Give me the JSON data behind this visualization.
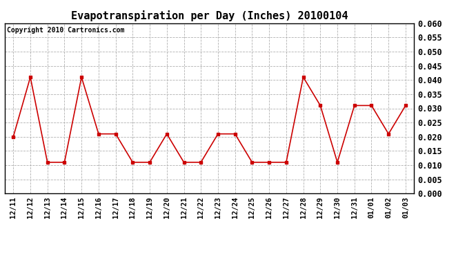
{
  "title": "Evapotranspiration per Day (Inches) 20100104",
  "copyright_text": "Copyright 2010 Cartronics.com",
  "x_labels": [
    "12/11",
    "12/12",
    "12/13",
    "12/14",
    "12/15",
    "12/16",
    "12/17",
    "12/18",
    "12/19",
    "12/20",
    "12/21",
    "12/22",
    "12/23",
    "12/24",
    "12/25",
    "12/26",
    "12/27",
    "12/28",
    "12/29",
    "12/30",
    "12/31",
    "01/01",
    "01/02",
    "01/03"
  ],
  "y_values": [
    0.02,
    0.041,
    0.011,
    0.011,
    0.041,
    0.021,
    0.021,
    0.011,
    0.011,
    0.021,
    0.011,
    0.011,
    0.021,
    0.021,
    0.011,
    0.011,
    0.011,
    0.041,
    0.031,
    0.011,
    0.031,
    0.031,
    0.021,
    0.031
  ],
  "line_color": "#cc0000",
  "marker": "s",
  "marker_size": 3,
  "ylim": [
    0.0,
    0.06
  ],
  "ytick_step": 0.005,
  "background_color": "#ffffff",
  "grid_color": "#b0b0b0",
  "title_fontsize": 11,
  "copyright_fontsize": 7,
  "tick_fontsize": 7.5,
  "ytick_fontsize": 8.5
}
